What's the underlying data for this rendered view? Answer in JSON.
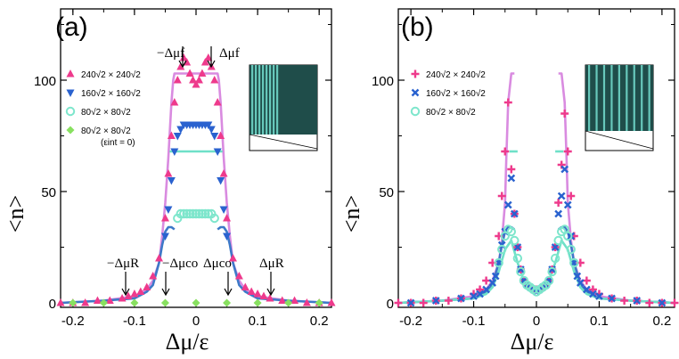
{
  "chart_data": [
    {
      "type": "scatter",
      "panel_label": "(a)",
      "xlabel": "Δμ/ε",
      "ylabel": "<n>",
      "xlim": [
        -0.22,
        0.22
      ],
      "ylim": [
        -2,
        132
      ],
      "xticks": [
        "-0.2",
        "-0.1",
        "0",
        "0.1",
        "0.2"
      ],
      "yticks": [
        "0",
        "50",
        "100"
      ],
      "legend_position": "upper-left",
      "annotations": [
        "−Δμf",
        "Δμf",
        "−ΔμR",
        "−Δμco",
        "Δμco",
        "ΔμR"
      ],
      "series": [
        {
          "name": "240√2 × 240√2",
          "marker": "triangle-up",
          "color": "#ee3a8c",
          "x": [
            -0.22,
            -0.2,
            -0.18,
            -0.16,
            -0.14,
            -0.12,
            -0.11,
            -0.1,
            -0.09,
            -0.08,
            -0.07,
            -0.06,
            -0.05,
            -0.045,
            -0.04,
            -0.035,
            -0.03,
            -0.025,
            -0.02,
            -0.015,
            -0.01,
            -0.005,
            0,
            0.005,
            0.01,
            0.015,
            0.02,
            0.025,
            0.03,
            0.035,
            0.04,
            0.045,
            0.05,
            0.06,
            0.07,
            0.08,
            0.09,
            0.1,
            0.11,
            0.12,
            0.14,
            0.16,
            0.18,
            0.2,
            0.22
          ],
          "y": [
            0,
            0,
            0,
            1,
            1,
            2,
            3,
            4,
            5,
            7,
            12,
            20,
            38,
            58,
            75,
            90,
            100,
            106,
            110,
            108,
            103,
            100,
            98,
            100,
            103,
            108,
            110,
            106,
            100,
            90,
            75,
            58,
            38,
            20,
            12,
            7,
            5,
            4,
            3,
            2,
            1,
            1,
            0,
            0,
            0
          ]
        },
        {
          "name": "160√2 × 160√2",
          "marker": "triangle-down",
          "color": "#2a62cf",
          "x": [
            -0.05,
            -0.045,
            -0.04,
            -0.035,
            -0.03,
            -0.025,
            -0.02,
            -0.015,
            -0.01,
            -0.005,
            0,
            0.005,
            0.01,
            0.015,
            0.02,
            0.025,
            0.03,
            0.035,
            0.04,
            0.045,
            0.05
          ],
          "y": [
            30,
            42,
            55,
            68,
            75,
            78,
            80,
            80,
            80,
            80,
            80,
            80,
            80,
            80,
            80,
            78,
            75,
            68,
            55,
            42,
            30
          ]
        },
        {
          "name": "80√2 × 80√2",
          "marker": "circle",
          "color": "#7ee6cc",
          "x": [
            -0.03,
            -0.025,
            -0.02,
            -0.015,
            -0.01,
            -0.005,
            0,
            0.005,
            0.01,
            0.015,
            0.02,
            0.025,
            0.03
          ],
          "y": [
            38,
            40,
            40,
            40,
            40,
            40,
            40,
            40,
            40,
            40,
            40,
            40,
            38
          ]
        },
        {
          "name": "80√2 × 80√2 (εint = 0)",
          "marker": "diamond",
          "color": "#88e060",
          "x": [
            -0.2,
            -0.15,
            -0.1,
            -0.05,
            0,
            0.05,
            0.1,
            0.15,
            0.2
          ],
          "y": [
            0,
            0,
            0,
            0,
            0,
            0,
            0,
            0,
            0
          ]
        },
        {
          "name": "",
          "marker": "line",
          "color": "#d98be0",
          "x": [
            -0.22,
            -0.15,
            -0.1,
            -0.08,
            -0.07,
            -0.06,
            -0.055,
            -0.05,
            -0.045,
            -0.04,
            -0.037,
            -0.035,
            -0.03,
            0.03,
            0.035,
            0.037,
            0.04,
            0.045,
            0.05,
            0.055,
            0.06,
            0.07,
            0.08,
            0.1,
            0.15,
            0.22
          ],
          "y": [
            0,
            1,
            3,
            6,
            10,
            18,
            30,
            45,
            65,
            90,
            100,
            103,
            103,
            103,
            103,
            100,
            90,
            65,
            45,
            30,
            18,
            10,
            6,
            3,
            1,
            0
          ]
        },
        {
          "name": "",
          "marker": "line",
          "color": "#6fe0c8",
          "x": [
            -0.043,
            -0.03,
            0.03,
            0.043
          ],
          "y": [
            68,
            68,
            68,
            68
          ]
        },
        {
          "name": "",
          "marker": "line",
          "color": "#3d79c8",
          "x": [
            -0.22,
            -0.15,
            -0.1,
            -0.08,
            -0.07,
            -0.06,
            -0.055,
            -0.05,
            -0.045,
            -0.04,
            -0.035
          ],
          "y": [
            0,
            1,
            2,
            5,
            8,
            18,
            26,
            32,
            34,
            34,
            33
          ]
        },
        {
          "name": "",
          "marker": "line",
          "color": "#3d79c8",
          "x": [
            0.035,
            0.04,
            0.045,
            0.05,
            0.055,
            0.06,
            0.07,
            0.08,
            0.1,
            0.15,
            0.22
          ],
          "y": [
            33,
            34,
            34,
            32,
            26,
            18,
            8,
            5,
            2,
            1,
            0
          ]
        }
      ]
    },
    {
      "type": "scatter",
      "panel_label": "(b)",
      "xlabel": "Δμ/ε",
      "ylabel": "<n>",
      "xlim": [
        -0.22,
        0.22
      ],
      "ylim": [
        -2,
        132
      ],
      "xticks": [
        "-0.2",
        "-0.1",
        "0",
        "0.1",
        "0.2"
      ],
      "yticks": [
        "0",
        "50",
        "100"
      ],
      "legend_position": "upper-left",
      "series": [
        {
          "name": "240√2 × 240√2",
          "marker": "plus",
          "color": "#ee3a8c",
          "x": [
            -0.22,
            -0.2,
            -0.18,
            -0.16,
            -0.14,
            -0.12,
            -0.1,
            -0.09,
            -0.08,
            -0.07,
            -0.06,
            -0.055,
            -0.05,
            -0.045,
            -0.04,
            -0.035,
            -0.03,
            -0.025,
            -0.02,
            -0.015,
            -0.01,
            -0.005,
            0,
            0.005,
            0.01,
            0.015,
            0.02,
            0.025,
            0.03,
            0.035,
            0.04,
            0.045,
            0.05,
            0.055,
            0.06,
            0.07,
            0.08,
            0.09,
            0.1,
            0.12,
            0.14,
            0.16,
            0.18,
            0.2,
            0.22
          ],
          "y": [
            0,
            0,
            0,
            1,
            1,
            2,
            4,
            6,
            10,
            18,
            30,
            48,
            68,
            90,
            60,
            40,
            25,
            15,
            10,
            8,
            7,
            6,
            6,
            6,
            7,
            8,
            10,
            15,
            25,
            45,
            62,
            85,
            68,
            48,
            30,
            18,
            10,
            6,
            4,
            2,
            1,
            1,
            0,
            0,
            0
          ]
        },
        {
          "name": "160√2 × 160√2",
          "marker": "cross",
          "color": "#2a62cf",
          "x": [
            -0.2,
            -0.16,
            -0.12,
            -0.1,
            -0.09,
            -0.08,
            -0.07,
            -0.065,
            -0.06,
            -0.055,
            -0.05,
            -0.045,
            -0.04,
            -0.035,
            -0.03,
            -0.025,
            -0.02,
            -0.015,
            -0.01,
            -0.005,
            0,
            0.005,
            0.01,
            0.015,
            0.02,
            0.025,
            0.03,
            0.035,
            0.04,
            0.045,
            0.05,
            0.055,
            0.06,
            0.065,
            0.07,
            0.08,
            0.09,
            0.1,
            0.12,
            0.16,
            0.2
          ],
          "y": [
            0,
            1,
            2,
            3,
            4,
            6,
            9,
            12,
            18,
            26,
            32,
            44,
            56,
            40,
            25,
            15,
            10,
            8,
            7,
            6,
            5,
            6,
            7,
            8,
            10,
            15,
            25,
            40,
            48,
            60,
            44,
            30,
            18,
            12,
            9,
            6,
            4,
            3,
            2,
            1,
            0
          ]
        },
        {
          "name": "80√2 × 80√2",
          "marker": "circle",
          "color": "#7ee6cc",
          "x": [
            -0.06,
            -0.055,
            -0.05,
            -0.045,
            -0.04,
            -0.035,
            -0.03,
            -0.025,
            -0.02,
            -0.015,
            -0.01,
            -0.005,
            0,
            0.005,
            0.01,
            0.015,
            0.02,
            0.025,
            0.03,
            0.035,
            0.04,
            0.045,
            0.05,
            0.055,
            0.06
          ],
          "y": [
            18,
            24,
            30,
            33,
            32,
            28,
            20,
            14,
            10,
            8,
            7,
            6,
            5,
            6,
            7,
            8,
            10,
            14,
            20,
            28,
            32,
            33,
            30,
            24,
            18
          ]
        },
        {
          "name": "",
          "marker": "line",
          "color": "#d98be0",
          "x": [
            -0.22,
            -0.15,
            -0.1,
            -0.08,
            -0.07,
            -0.06,
            -0.055,
            -0.05,
            -0.048,
            -0.045,
            -0.04,
            -0.035
          ],
          "y": [
            0,
            1,
            3,
            6,
            10,
            18,
            28,
            45,
            65,
            90,
            103,
            103
          ]
        },
        {
          "name": "",
          "marker": "line",
          "color": "#d98be0",
          "x": [
            0.035,
            0.04,
            0.045,
            0.048,
            0.05,
            0.055,
            0.06,
            0.07,
            0.08,
            0.1,
            0.15,
            0.22
          ],
          "y": [
            103,
            103,
            90,
            65,
            45,
            28,
            18,
            10,
            6,
            3,
            1,
            0
          ]
        },
        {
          "name": "",
          "marker": "line",
          "color": "#6fe0c8",
          "x": [
            -0.043,
            -0.03
          ],
          "y": [
            68,
            68
          ]
        },
        {
          "name": "",
          "marker": "line",
          "color": "#6fe0c8",
          "x": [
            0.03,
            0.043
          ],
          "y": [
            68,
            68
          ]
        },
        {
          "name": "",
          "marker": "line",
          "color": "#3d79c8",
          "x": [
            -0.22,
            -0.15,
            -0.1,
            -0.08,
            -0.07,
            -0.06,
            -0.055,
            -0.05,
            -0.045,
            -0.04,
            -0.035
          ],
          "y": [
            0,
            1,
            2,
            5,
            8,
            18,
            26,
            32,
            34,
            34,
            33
          ]
        },
        {
          "name": "",
          "marker": "line",
          "color": "#3d79c8",
          "x": [
            0.035,
            0.04,
            0.045,
            0.05,
            0.055,
            0.06,
            0.07,
            0.08,
            0.1,
            0.15,
            0.22
          ],
          "y": [
            33,
            34,
            34,
            32,
            26,
            18,
            8,
            5,
            2,
            1,
            0
          ]
        },
        {
          "name": "",
          "marker": "line",
          "color": "#6fe0c8",
          "x": [
            -0.22,
            -0.15,
            -0.1,
            -0.08,
            -0.07,
            -0.06,
            -0.05,
            -0.04,
            -0.03,
            -0.02,
            -0.01,
            0,
            0.01,
            0.02,
            0.03,
            0.04,
            0.05,
            0.06,
            0.07,
            0.08,
            0.1,
            0.15,
            0.22
          ],
          "y": [
            0,
            1,
            2,
            4,
            7,
            14,
            24,
            28,
            18,
            10,
            7,
            6,
            7,
            10,
            18,
            28,
            24,
            14,
            7,
            4,
            2,
            1,
            0
          ]
        }
      ]
    }
  ],
  "legend_a": [
    {
      "label": "240√2 × 240√2",
      "marker": "triangle-up",
      "color": "#ee3a8c"
    },
    {
      "label": "160√2 × 160√2",
      "marker": "triangle-down",
      "color": "#2a62cf"
    },
    {
      "label": "80√2 × 80√2",
      "marker": "circle",
      "color": "#7ee6cc"
    },
    {
      "label": "80√2 × 80√2",
      "sublabel": "(εint = 0)",
      "marker": "diamond",
      "color": "#88e060"
    }
  ],
  "legend_b": [
    {
      "label": "240√2 × 240√2",
      "marker": "plus",
      "color": "#ee3a8c"
    },
    {
      "label": "160√2 × 160√2",
      "marker": "cross",
      "color": "#2a62cf"
    },
    {
      "label": "80√2 × 80√2",
      "marker": "circle",
      "color": "#7ee6cc"
    }
  ],
  "colors": {
    "inset_dark": "#1f4d4a",
    "inset_stripe": "#6fd6c8",
    "axis": "#000000"
  }
}
